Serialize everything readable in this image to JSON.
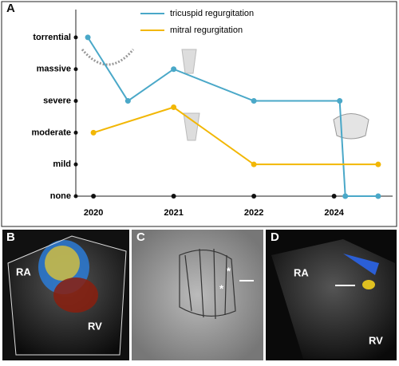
{
  "chart_data": {
    "type": "line",
    "series": [
      {
        "name": "tricuspid regurgitation",
        "color": "#4aa8c8",
        "x": [
          -0.07,
          0.43,
          1,
          2,
          3.07,
          3.14,
          3.55
        ],
        "values": [
          5,
          3,
          4,
          3,
          3,
          0,
          0
        ]
      },
      {
        "name": "mitral regurgitation",
        "color": "#f2b705",
        "x": [
          0,
          1,
          2,
          3.55
        ],
        "values": [
          2,
          2.8,
          1,
          1
        ]
      }
    ],
    "xlim": [
      -0.22,
      3.73
    ],
    "xticks": [
      {
        "value": 0,
        "label": "2020"
      },
      {
        "value": 1,
        "label": "2021"
      },
      {
        "value": 2,
        "label": "2022"
      },
      {
        "value": 3,
        "label": "2024"
      }
    ],
    "ylim": [
      0,
      5.5
    ],
    "yticks": [
      {
        "value": 0,
        "label": "none"
      },
      {
        "value": 1,
        "label": "mild"
      },
      {
        "value": 2,
        "label": "moderate"
      },
      {
        "value": 3,
        "label": "severe"
      },
      {
        "value": 4,
        "label": "massive"
      },
      {
        "value": 5,
        "label": "torrential"
      }
    ],
    "legend": "top"
  },
  "panels": [
    {
      "label": "A"
    },
    {
      "label": "B",
      "annotations": [
        "RA",
        "RV"
      ]
    },
    {
      "label": "C",
      "annotations": [
        "*",
        "*"
      ]
    },
    {
      "label": "D",
      "annotations": [
        "RA",
        "RV"
      ]
    }
  ]
}
